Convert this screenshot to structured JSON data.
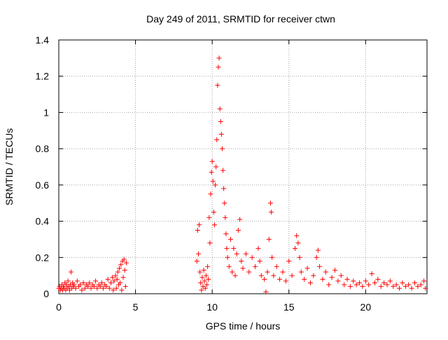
{
  "chart_data": {
    "type": "scatter",
    "title": "Day 249 of 2011, SRMTID for receiver ctwn",
    "xlabel": "GPS time / hours",
    "ylabel": "SRMTID / TECUs",
    "xlim": [
      0,
      24
    ],
    "ylim": [
      0,
      1.4
    ],
    "x_ticks": [
      0,
      5,
      10,
      15,
      20
    ],
    "x_tick_labels": [
      "0",
      "5",
      "10",
      "15",
      "20"
    ],
    "y_ticks": [
      0,
      0.2,
      0.4,
      0.6,
      0.8,
      1.0,
      1.2,
      1.4
    ],
    "y_tick_labels": [
      "0",
      "0.2",
      "0.4",
      "0.6",
      "0.8",
      "1",
      "1.2",
      "1.4"
    ],
    "grid": true,
    "marker": "plus",
    "color": "#ff0000",
    "series": [
      {
        "name": "SRMTID",
        "points": [
          [
            0.0,
            0.03
          ],
          [
            0.05,
            0.04
          ],
          [
            0.1,
            0.02
          ],
          [
            0.15,
            0.03
          ],
          [
            0.2,
            0.05
          ],
          [
            0.25,
            0.02
          ],
          [
            0.3,
            0.04
          ],
          [
            0.35,
            0.03
          ],
          [
            0.4,
            0.06
          ],
          [
            0.45,
            0.02
          ],
          [
            0.5,
            0.05
          ],
          [
            0.55,
            0.03
          ],
          [
            0.6,
            0.07
          ],
          [
            0.65,
            0.04
          ],
          [
            0.7,
            0.02
          ],
          [
            0.75,
            0.05
          ],
          [
            0.8,
            0.12
          ],
          [
            0.85,
            0.03
          ],
          [
            0.9,
            0.06
          ],
          [
            0.95,
            0.04
          ],
          [
            1.0,
            0.05
          ],
          [
            1.1,
            0.03
          ],
          [
            1.2,
            0.07
          ],
          [
            1.3,
            0.04
          ],
          [
            1.4,
            0.05
          ],
          [
            1.5,
            0.02
          ],
          [
            1.6,
            0.06
          ],
          [
            1.7,
            0.03
          ],
          [
            1.8,
            0.05
          ],
          [
            1.9,
            0.04
          ],
          [
            2.0,
            0.06
          ],
          [
            2.1,
            0.03
          ],
          [
            2.2,
            0.05
          ],
          [
            2.3,
            0.04
          ],
          [
            2.4,
            0.07
          ],
          [
            2.5,
            0.03
          ],
          [
            2.6,
            0.05
          ],
          [
            2.7,
            0.04
          ],
          [
            2.8,
            0.06
          ],
          [
            2.9,
            0.03
          ],
          [
            3.0,
            0.05
          ],
          [
            3.1,
            0.04
          ],
          [
            3.2,
            0.08
          ],
          [
            3.3,
            0.03
          ],
          [
            3.4,
            0.06
          ],
          [
            3.5,
            0.09
          ],
          [
            3.55,
            0.02
          ],
          [
            3.6,
            0.07
          ],
          [
            3.7,
            0.1
          ],
          [
            3.75,
            0.03
          ],
          [
            3.8,
            0.08
          ],
          [
            3.85,
            0.12
          ],
          [
            3.9,
            0.05
          ],
          [
            3.95,
            0.14
          ],
          [
            4.0,
            0.06
          ],
          [
            4.05,
            0.16
          ],
          [
            4.1,
            0.02
          ],
          [
            4.15,
            0.18
          ],
          [
            4.2,
            0.09
          ],
          [
            4.25,
            0.19
          ],
          [
            4.3,
            0.13
          ],
          [
            4.35,
            0.04
          ],
          [
            4.4,
            0.17
          ],
          [
            9.0,
            0.18
          ],
          [
            9.05,
            0.35
          ],
          [
            9.1,
            0.22
          ],
          [
            9.15,
            0.38
          ],
          [
            9.2,
            0.12
          ],
          [
            9.25,
            0.06
          ],
          [
            9.3,
            0.02
          ],
          [
            9.35,
            0.09
          ],
          [
            9.4,
            0.04
          ],
          [
            9.45,
            0.13
          ],
          [
            9.5,
            0.07
          ],
          [
            9.55,
            0.03
          ],
          [
            9.6,
            0.1
          ],
          [
            9.65,
            0.05
          ],
          [
            9.7,
            0.15
          ],
          [
            9.75,
            0.08
          ],
          [
            9.8,
            0.42
          ],
          [
            9.85,
            0.28
          ],
          [
            9.9,
            0.55
          ],
          [
            9.95,
            0.67
          ],
          [
            10.0,
            0.73
          ],
          [
            10.05,
            0.62
          ],
          [
            10.1,
            0.45
          ],
          [
            10.15,
            0.38
          ],
          [
            10.2,
            0.6
          ],
          [
            10.25,
            0.7
          ],
          [
            10.3,
            0.85
          ],
          [
            10.35,
            1.15
          ],
          [
            10.4,
            1.25
          ],
          [
            10.45,
            1.3
          ],
          [
            10.5,
            1.02
          ],
          [
            10.55,
            0.95
          ],
          [
            10.6,
            0.88
          ],
          [
            10.65,
            0.8
          ],
          [
            10.7,
            0.68
          ],
          [
            10.75,
            0.58
          ],
          [
            10.8,
            0.5
          ],
          [
            10.85,
            0.42
          ],
          [
            10.9,
            0.33
          ],
          [
            10.95,
            0.25
          ],
          [
            11.0,
            0.2
          ],
          [
            11.1,
            0.15
          ],
          [
            11.2,
            0.3
          ],
          [
            11.3,
            0.12
          ],
          [
            11.4,
            0.25
          ],
          [
            11.5,
            0.1
          ],
          [
            11.6,
            0.22
          ],
          [
            11.7,
            0.35
          ],
          [
            11.8,
            0.41
          ],
          [
            11.9,
            0.18
          ],
          [
            12.0,
            0.14
          ],
          [
            12.2,
            0.22
          ],
          [
            12.4,
            0.12
          ],
          [
            12.6,
            0.2
          ],
          [
            12.8,
            0.15
          ],
          [
            13.0,
            0.25
          ],
          [
            13.1,
            0.18
          ],
          [
            13.2,
            0.1
          ],
          [
            13.4,
            0.08
          ],
          [
            13.5,
            0.01
          ],
          [
            13.6,
            0.12
          ],
          [
            13.7,
            0.3
          ],
          [
            13.8,
            0.5
          ],
          [
            13.85,
            0.45
          ],
          [
            13.9,
            0.2
          ],
          [
            14.0,
            0.1
          ],
          [
            14.2,
            0.15
          ],
          [
            14.4,
            0.08
          ],
          [
            14.6,
            0.12
          ],
          [
            14.8,
            0.07
          ],
          [
            15.0,
            0.18
          ],
          [
            15.2,
            0.1
          ],
          [
            15.4,
            0.25
          ],
          [
            15.5,
            0.32
          ],
          [
            15.6,
            0.28
          ],
          [
            15.7,
            0.2
          ],
          [
            15.8,
            0.12
          ],
          [
            16.0,
            0.08
          ],
          [
            16.2,
            0.14
          ],
          [
            16.4,
            0.06
          ],
          [
            16.6,
            0.1
          ],
          [
            16.8,
            0.2
          ],
          [
            16.9,
            0.24
          ],
          [
            17.0,
            0.15
          ],
          [
            17.2,
            0.08
          ],
          [
            17.4,
            0.12
          ],
          [
            17.6,
            0.05
          ],
          [
            17.8,
            0.09
          ],
          [
            18.0,
            0.13
          ],
          [
            18.2,
            0.07
          ],
          [
            18.4,
            0.1
          ],
          [
            18.6,
            0.05
          ],
          [
            18.8,
            0.08
          ],
          [
            19.0,
            0.04
          ],
          [
            19.2,
            0.07
          ],
          [
            19.4,
            0.05
          ],
          [
            19.6,
            0.06
          ],
          [
            19.8,
            0.04
          ],
          [
            20.0,
            0.07
          ],
          [
            20.2,
            0.05
          ],
          [
            20.4,
            0.11
          ],
          [
            20.6,
            0.06
          ],
          [
            20.8,
            0.08
          ],
          [
            21.0,
            0.04
          ],
          [
            21.2,
            0.06
          ],
          [
            21.4,
            0.05
          ],
          [
            21.6,
            0.07
          ],
          [
            21.8,
            0.04
          ],
          [
            22.0,
            0.05
          ],
          [
            22.2,
            0.03
          ],
          [
            22.4,
            0.06
          ],
          [
            22.6,
            0.04
          ],
          [
            22.8,
            0.05
          ],
          [
            23.0,
            0.03
          ],
          [
            23.2,
            0.06
          ],
          [
            23.4,
            0.04
          ],
          [
            23.6,
            0.05
          ],
          [
            23.8,
            0.07
          ],
          [
            23.9,
            0.03
          ]
        ]
      }
    ]
  }
}
